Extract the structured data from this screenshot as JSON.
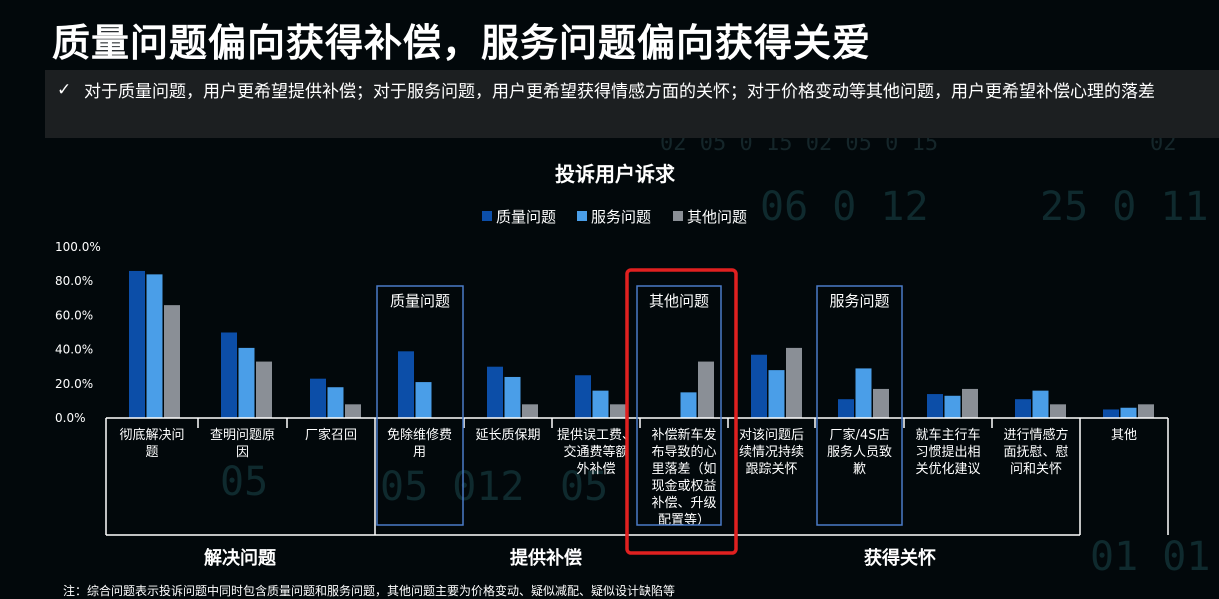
{
  "header": {
    "title": "质量问题偏向获得补偿，服务问题偏向获得关爱",
    "check_icon": "✓",
    "subtitle": "对于质量问题，用户更希望提供补偿；对于服务问题，用户更希望获得情感方面的关怀；对于价格变动等其他问题，用户更希望补偿心理的落差"
  },
  "footnote": "注：综合问题表示投诉问题中同时包含质量问题和服务问题，其他问题主要为价格变动、疑似减配、疑似设计缺陷等",
  "colors": {
    "quality": "#0c4ea8",
    "service": "#4a9ee8",
    "other": "#8a8f96",
    "highlight": "#e02020",
    "callout_border": "#4a7bc8"
  },
  "callouts": [
    "质量问题",
    "其他问题",
    "服务问题"
  ],
  "chart_data": {
    "type": "bar",
    "title": "投诉用户诉求",
    "legend_position": "top",
    "y_ticks": [
      "100.0%",
      "80.0%",
      "60.0%",
      "40.0%",
      "20.0%",
      "0.0%"
    ],
    "ylim": [
      0,
      100
    ],
    "categories": [
      [
        "彻底解决问",
        "题"
      ],
      [
        "查明问题原",
        "因"
      ],
      [
        "厂家召回"
      ],
      [
        "免除维修费",
        "用"
      ],
      [
        "延长质保期"
      ],
      [
        "提供误工费、",
        "交通费等额",
        "外补偿"
      ],
      [
        "补偿新车发",
        "布导致的心",
        "里落差（如",
        "现金或权益",
        "补偿、升级",
        "配置等）"
      ],
      [
        "对该问题后",
        "续情况持续",
        "跟踪关怀"
      ],
      [
        "厂家/4S店",
        "服务人员致",
        "歉"
      ],
      [
        "就车主行车",
        "习惯提出相",
        "关优化建议"
      ],
      [
        "进行情感方",
        "面抚慰、慰",
        "问和关怀"
      ],
      [
        "其他"
      ]
    ],
    "groups": [
      "解决问题",
      "提供补偿",
      "获得关怀"
    ],
    "series": [
      {
        "name": "质量问题",
        "values": [
          86,
          50,
          23,
          39,
          30,
          25,
          0,
          37,
          11,
          14,
          11,
          5
        ]
      },
      {
        "name": "服务问题",
        "values": [
          84,
          41,
          18,
          21,
          24,
          16,
          15,
          28,
          29,
          13,
          16,
          6
        ]
      },
      {
        "name": "其他问题",
        "values": [
          66,
          33,
          8,
          0,
          8,
          8,
          33,
          41,
          17,
          17,
          8,
          8
        ]
      }
    ]
  }
}
